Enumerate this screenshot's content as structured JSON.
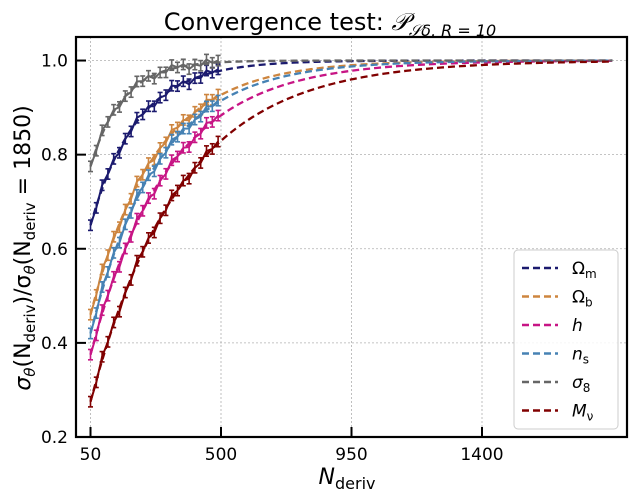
{
  "chart_data": {
    "type": "line",
    "title": {
      "main": "Convergence test: ",
      "math_sym": "𝒫",
      "math_sub": "𝒮δ, R = 10"
    },
    "xlabel": {
      "sym": "N",
      "sub": "deriv"
    },
    "ylabel": {
      "prefix": "σ",
      "part1": "θ",
      "part2": "(N",
      "part3": "deriv",
      "part4": ")/σ",
      "part5": "θ",
      "part6": "(N",
      "part7": "deriv",
      "part8": " = 1850)"
    },
    "xlim": [
      0,
      1900
    ],
    "ylim": [
      0.2,
      1.05
    ],
    "xticks": [
      50,
      500,
      950,
      1400
    ],
    "xtick_labels": [
      "50",
      "500",
      "950",
      "1400"
    ],
    "yticks": [
      0.2,
      0.4,
      0.6,
      0.8,
      1.0
    ],
    "ytick_labels": [
      "0.2",
      "0.4",
      "0.6",
      "0.8",
      "1.0"
    ],
    "grid": true,
    "legend_position": "lower-right",
    "series": [
      {
        "name": "Ω",
        "sub": "m",
        "italic": false,
        "color": "#1b1a6e",
        "tau": 161,
        "n50": 0.65,
        "fit_end": 490
      },
      {
        "name": "Ω",
        "sub": "b",
        "italic": false,
        "color": "#cd853f",
        "tau": 225,
        "n50": 0.46,
        "fit_end": 490
      },
      {
        "name": "h",
        "sub": "",
        "italic": true,
        "color": "#c71585",
        "tau": 268,
        "n50": 0.375,
        "fit_end": 490
      },
      {
        "name": "n",
        "sub": "s",
        "italic": true,
        "color": "#4682b4",
        "tau": 235,
        "n50": 0.42,
        "fit_end": 490
      },
      {
        "name": "σ",
        "sub": "8",
        "italic": true,
        "color": "#666666",
        "tau": 110,
        "n50": 0.775,
        "fit_end": 490
      },
      {
        "name": "M",
        "sub": "ν",
        "italic": true,
        "color": "#800000",
        "tau": 311,
        "n50": 0.275,
        "fit_end": 490
      }
    ],
    "error_bar_x": [
      50,
      70,
      90,
      110,
      130,
      150,
      170,
      190,
      210,
      230,
      250,
      270,
      290,
      310,
      330,
      350,
      370,
      390,
      410,
      430,
      450,
      470,
      490
    ],
    "error_bar_halfwidth": 0.011
  }
}
